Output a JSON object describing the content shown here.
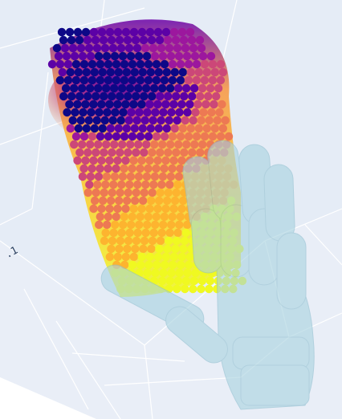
{
  "scene": {
    "background": "#ffffff",
    "pane_color": "#e5ecf6",
    "grid_color": "#ffffff",
    "axis_tick_label": ".1",
    "point_cloud": {
      "object": "cup",
      "colorscale": "plasma",
      "colors": [
        "#0d0887",
        "#5c01a6",
        "#9c179e",
        "#cc4778",
        "#ed7953",
        "#fdb42f",
        "#f0f921"
      ]
    },
    "hand": {
      "object": "robot-hand-mesh",
      "color": "#a9d3e0",
      "opacity": 0.6
    }
  }
}
